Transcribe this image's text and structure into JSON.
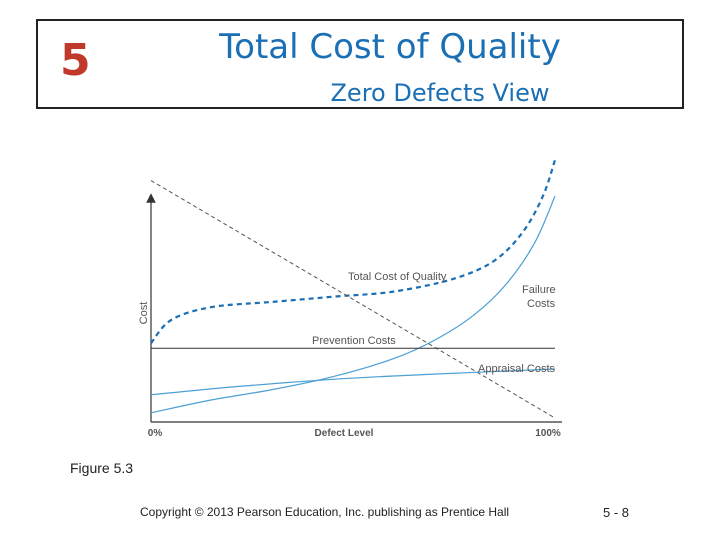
{
  "slide": {
    "chapter_number": "5",
    "title": "Total Cost of Quality",
    "subtitle": "Zero Defects View",
    "figure_caption": "Figure 5.3",
    "copyright": "Copyright © 2013 Pearson Education, Inc. publishing as Prentice Hall",
    "page_number": "5 - 8"
  },
  "colors": {
    "accent_blue": "#1a6fb5",
    "curve_blue": "#4a9fd4",
    "chapter_red": "#c0392b",
    "axis": "#333333"
  },
  "chart_data": {
    "type": "line",
    "xlabel": "Defect Level",
    "ylabel": "Cost",
    "x_ticks": [
      "0%",
      "100%"
    ],
    "xlim": [
      0,
      100
    ],
    "ylim": [
      0,
      100
    ],
    "grid": false,
    "series": [
      {
        "name": "Total Cost of Quality",
        "style": "dashed",
        "x": [
          0,
          5,
          15,
          30,
          45,
          60,
          75,
          85,
          92,
          97,
          100
        ],
        "y": [
          29,
          38,
          43,
          45,
          47,
          49,
          54,
          61,
          72,
          86,
          100
        ]
      },
      {
        "name": "Failure Costs",
        "style": "solid",
        "x": [
          0,
          15,
          30,
          45,
          60,
          70,
          80,
          88,
          95,
          100
        ],
        "y": [
          2,
          7,
          11,
          16,
          23,
          30,
          40,
          52,
          68,
          86
        ]
      },
      {
        "name": "Prevention Costs",
        "style": "dashed-dark",
        "x": [
          0,
          100
        ],
        "y": [
          92,
          0
        ]
      },
      {
        "name": "Appraisal Costs",
        "style": "solid-dark",
        "x": [
          0,
          100
        ],
        "y": [
          27,
          27
        ]
      },
      {
        "name": "",
        "style": "solid",
        "x": [
          0,
          20,
          45,
          70,
          100
        ],
        "y": [
          9,
          12,
          15,
          17,
          19
        ]
      }
    ],
    "annotations": [
      {
        "text": "Total Cost of Quality",
        "series": "Total Cost of Quality"
      },
      {
        "text": "Failure",
        "series": "Failure Costs"
      },
      {
        "text": "Costs",
        "series": "Failure Costs"
      },
      {
        "text": "Prevention Costs",
        "series": "Prevention Costs"
      },
      {
        "text": "Appraisal Costs",
        "series": "Appraisal Costs"
      }
    ]
  }
}
